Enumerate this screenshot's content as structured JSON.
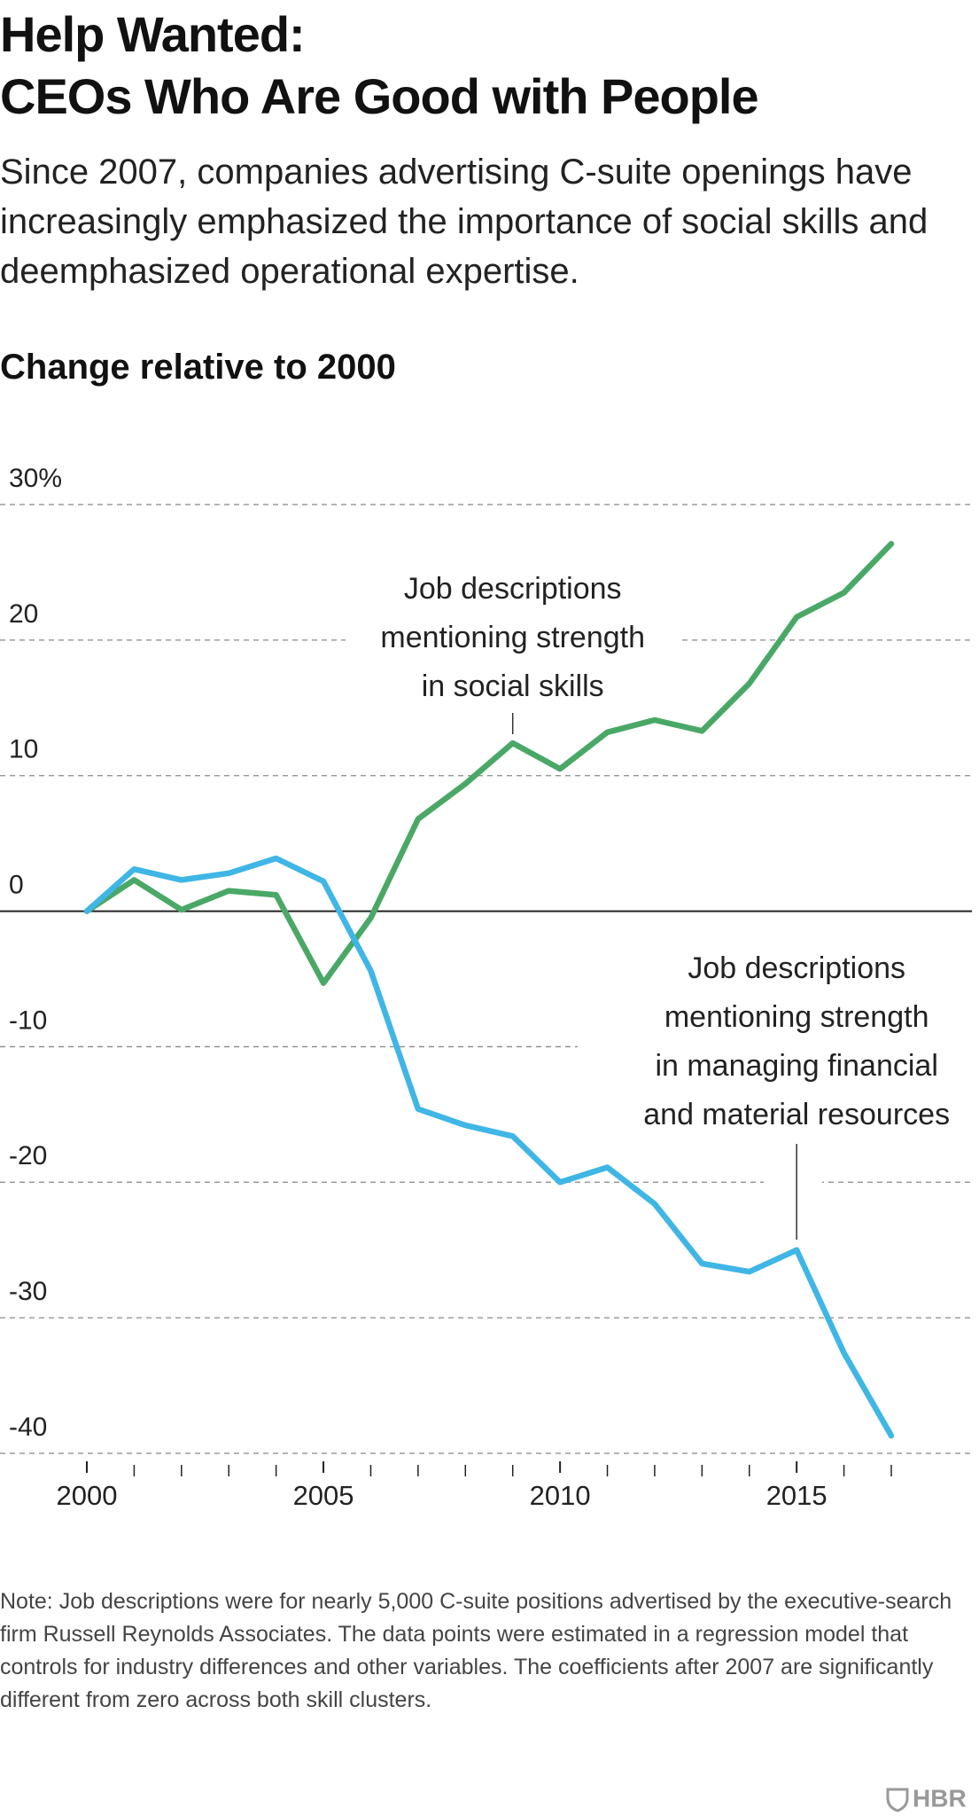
{
  "title_lines": [
    "Help Wanted:",
    "CEOs Who Are Good with People"
  ],
  "subtitle": "Since 2007, companies advertising C-suite openings have increasingly emphasized the importance of social skills and deemphasized operational expertise.",
  "chart_data": {
    "type": "line",
    "y_axis_title": "Change relative to 2000",
    "x": [
      2000,
      2001,
      2002,
      2003,
      2004,
      2005,
      2006,
      2007,
      2008,
      2009,
      2010,
      2011,
      2012,
      2013,
      2014,
      2015,
      2016,
      2017
    ],
    "series": [
      {
        "color": "#4aa867",
        "values": [
          0,
          2.3,
          0.1,
          1.5,
          1.2,
          -5.3,
          -0.5,
          6.8,
          9.4,
          12.4,
          10.5,
          13.2,
          14.1,
          13.3,
          16.8,
          21.7,
          23.5,
          27.1
        ]
      },
      {
        "color": "#3fb6e5",
        "values": [
          0,
          3.1,
          2.3,
          2.8,
          3.9,
          2.2,
          -4.4,
          -14.6,
          -15.8,
          -16.6,
          -20.0,
          -18.9,
          -21.6,
          -26.0,
          -26.6,
          -25.0,
          -32.6,
          -38.7
        ]
      }
    ],
    "xlim": [
      2000,
      2017
    ],
    "xticks": [
      2000,
      2005,
      2010,
      2015
    ],
    "xticks_minor": [
      2001,
      2002,
      2003,
      2004,
      2006,
      2007,
      2008,
      2009,
      2011,
      2012,
      2013,
      2014,
      2016,
      2017
    ],
    "ylim": [
      -40,
      30
    ],
    "yticks": [
      {
        "value": 30,
        "label": "30%"
      },
      20,
      10,
      0,
      -10,
      -20,
      -30,
      -40
    ],
    "grid": true,
    "annotations": [
      {
        "lines": [
          "Job descriptions",
          "mentioning strength",
          "in social skills"
        ],
        "series": 0,
        "x": 2009
      },
      {
        "lines": [
          "Job descriptions",
          "mentioning strength",
          "in managing financial",
          "and material resources"
        ],
        "series": 1,
        "x": 2015
      }
    ]
  },
  "note": "Note: Job descriptions were for nearly 5,000 C-suite positions advertised by the executive-search firm Russell Reynolds Associates. The data points were estimated in a regression model that controls for industry differences and other variables. The coefficients after 2007 are significantly different from zero across both skill clusters.",
  "logo": "HBR"
}
